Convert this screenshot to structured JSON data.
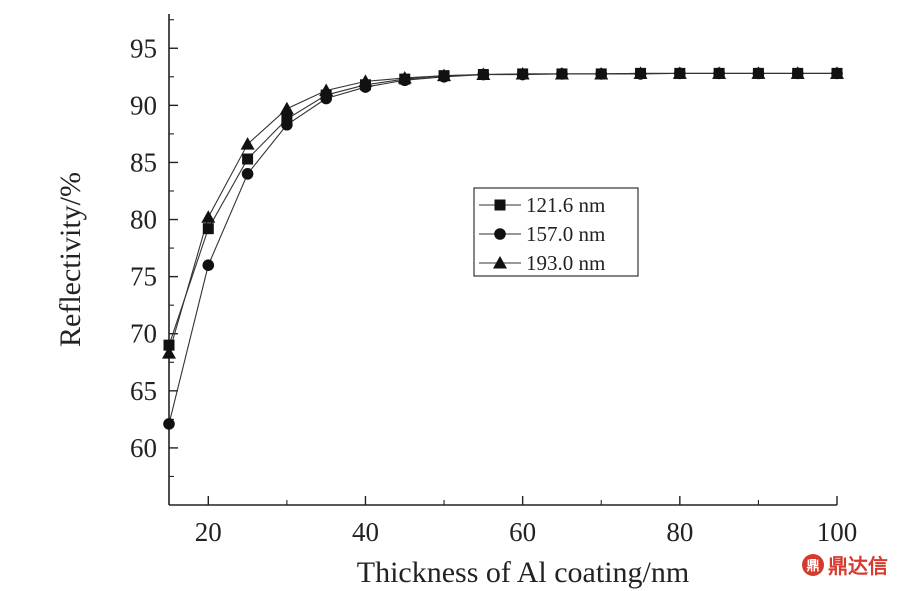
{
  "chart_data": {
    "type": "line",
    "xlabel": "Thickness of Al coating/nm",
    "ylabel": "Reflectivity/%",
    "xlim": [
      15,
      100
    ],
    "ylim": [
      55,
      98
    ],
    "xticks": [
      20,
      40,
      60,
      80,
      100
    ],
    "yticks": [
      60,
      65,
      70,
      75,
      80,
      85,
      90,
      95
    ],
    "grid": false,
    "legend_position": "center-right",
    "x": [
      15,
      20,
      25,
      30,
      35,
      40,
      45,
      50,
      55,
      60,
      65,
      70,
      75,
      80,
      85,
      90,
      95,
      100
    ],
    "series": [
      {
        "name": "121.6 nm",
        "marker": "square",
        "values": [
          69,
          79.2,
          85.3,
          88.8,
          90.9,
          91.8,
          92.3,
          92.6,
          92.7,
          92.75,
          92.75,
          92.75,
          92.8,
          92.8,
          92.8,
          92.8,
          92.8,
          92.8
        ]
      },
      {
        "name": "157.0 nm",
        "marker": "circle",
        "values": [
          62.1,
          76,
          84,
          88.3,
          90.6,
          91.6,
          92.2,
          92.5,
          92.7,
          92.7,
          92.75,
          92.75,
          92.75,
          92.8,
          92.8,
          92.8,
          92.8,
          92.8
        ]
      },
      {
        "name": "193.0 nm",
        "marker": "triangle",
        "values": [
          68.3,
          80.2,
          86.6,
          89.7,
          91.3,
          92.1,
          92.4,
          92.6,
          92.7,
          92.75,
          92.75,
          92.75,
          92.8,
          92.8,
          92.8,
          92.8,
          92.8,
          92.8
        ]
      }
    ]
  },
  "watermark": {
    "logo": "鼎",
    "text": "鼎达信"
  }
}
